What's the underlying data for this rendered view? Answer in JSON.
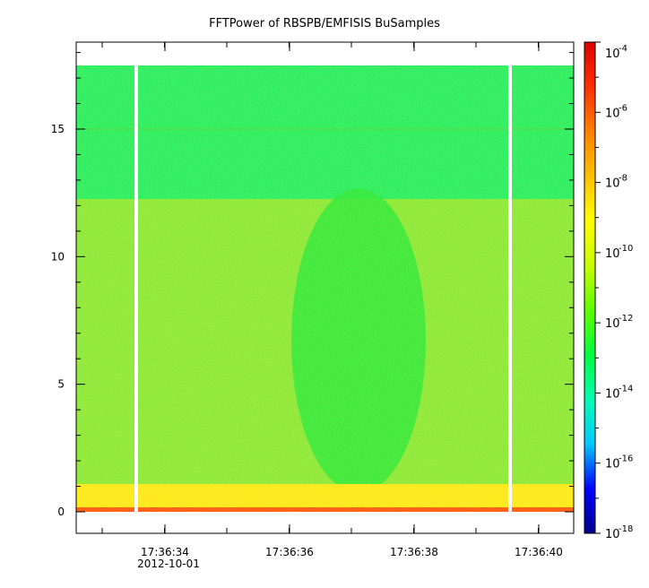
{
  "chart_data": {
    "type": "heatmap",
    "title": "FFTPower of RBSPB/EMFISIS  BuSamples",
    "x_tick_labels": [
      "17:36:34",
      "17:36:36",
      "17:36:38",
      "17:36:40"
    ],
    "x_date_label": "2012-10-01",
    "y_tick_labels": [
      "0",
      "5",
      "10",
      "15"
    ],
    "ylim": [
      -0.8,
      18.5
    ],
    "colorbar": {
      "scale": "log",
      "range": [
        1e-18,
        0.0001
      ],
      "tick_base": "10",
      "tick_exponents": [
        "-4",
        "-6",
        "-8",
        "-10",
        "-12",
        "-14",
        "-16",
        "-18"
      ],
      "colormap": [
        "#00008b",
        "#0000ff",
        "#00c8ff",
        "#00ffb0",
        "#00ff40",
        "#60ff00",
        "#c8ff00",
        "#ffff00",
        "#ffc000",
        "#ff8000",
        "#ff3000",
        "#dc0000"
      ]
    },
    "data_gaps_at": [
      "17:36:33.5",
      "17:36:39.5"
    ],
    "bands": [
      {
        "freq_range": [
          12.3,
          17.5
        ],
        "level": "1e-11.5"
      },
      {
        "freq_range": [
          1.0,
          12.3
        ],
        "level": "1e-9.5"
      },
      {
        "freq_range": [
          0.0,
          1.0
        ],
        "level": "1e-8"
      },
      {
        "freq_range": [
          0.0,
          0.15
        ],
        "level": "1e-6"
      }
    ],
    "colors": {
      "upper_band": "#2aee62",
      "mid_band": "#8de83a",
      "quiet_region": "#2fe83d",
      "low_band": "#ffe81c",
      "dc_line": "#ff5a10"
    }
  }
}
